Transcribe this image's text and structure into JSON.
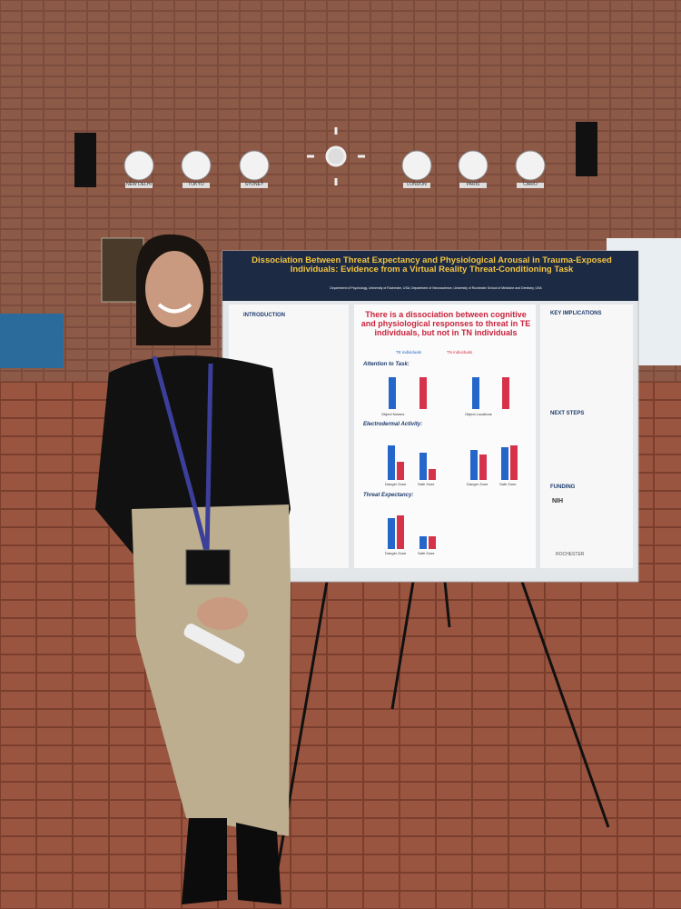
{
  "wall_clocks": [
    "NEW DELHI",
    "TOKYO",
    "SYDNEY",
    "LONDON",
    "PARIS",
    "CAIRO"
  ],
  "poster": {
    "title": "Dissociation Between Threat Expectancy and Physiological Arousal in Trauma-Exposed Individuals: Evidence from a Virtual Reality Threat-Conditioning Task",
    "affiliations": "Department of Psychology, University of Rochester, USA; Department of Neuroscience, University of Rochester School of Medicine and Dentistry, USA",
    "headline": "There is a dissociation between cognitive and physiological responses to threat in TE individuals, but not in TN individuals",
    "legend": [
      "TE individuals",
      "TN individuals"
    ],
    "left_heading": "INTRODUCTION",
    "middle_headings": [
      "Attention to Task:",
      "Electrodermal Activity:",
      "Threat Expectancy:"
    ],
    "chart_labels": [
      "Object Names",
      "Object Locations",
      "Danger Zone",
      "Safe Zone",
      "Danger Zone",
      "Safe Zone",
      "Danger Zone",
      "Safe Zone"
    ],
    "right_headings": [
      "KEY IMPLICATIONS",
      "NEXT STEPS",
      "FUNDING"
    ],
    "logos": [
      "NIH",
      "ROCHESTER"
    ]
  }
}
